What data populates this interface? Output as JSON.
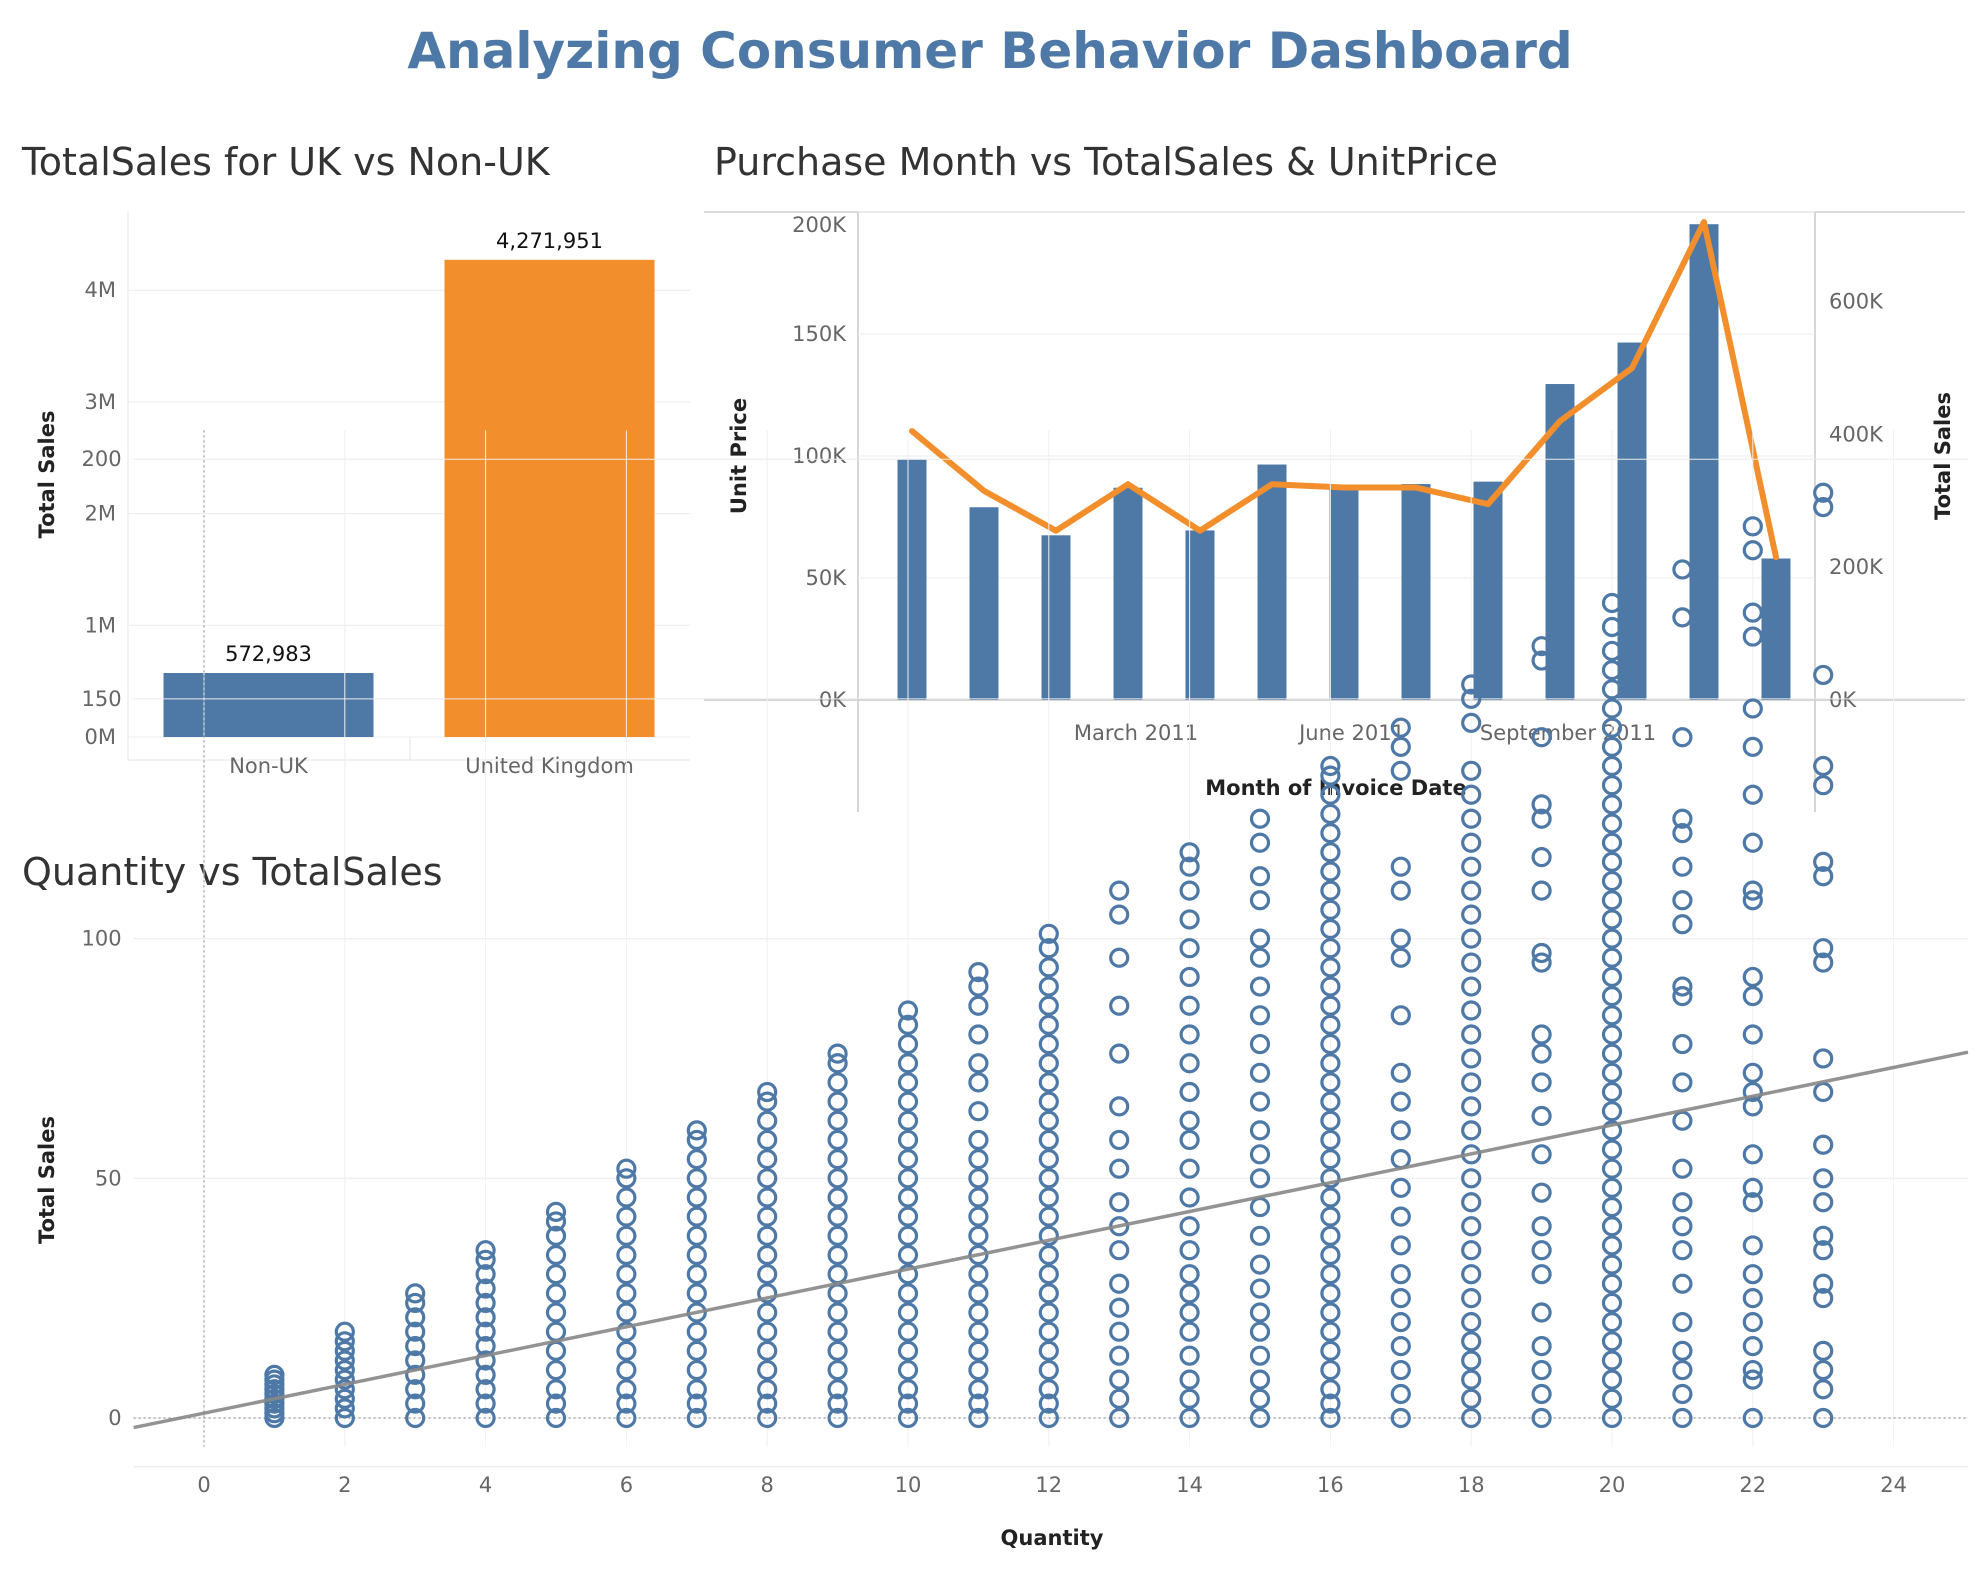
{
  "dashboard_title": "Analyzing Consumer Behavior Dashboard",
  "chart_data": [
    {
      "id": "uk_vs_nonuk",
      "type": "bar",
      "title": "TotalSales for UK vs Non-UK",
      "categories": [
        "Non-UK",
        "United Kingdom"
      ],
      "values": [
        572983,
        4271951
      ],
      "data_labels": [
        "572,983",
        "4,271,951"
      ],
      "colors": [
        "#4e79a7",
        "#f28e2b"
      ],
      "ylabel": "Total Sales",
      "xlabel": "",
      "ylim": [
        0,
        4700000
      ],
      "yticks": [
        0,
        1000000,
        2000000,
        3000000,
        4000000
      ],
      "ytick_labels": [
        "0M",
        "1M",
        "2M",
        "3M",
        "4M"
      ],
      "grid": true
    },
    {
      "id": "month_combo",
      "type": "bar",
      "title": "Purchase Month vs TotalSales & UnitPrice",
      "xlabel": "Month of Invoice Date",
      "x": [
        "2010-12",
        "2011-01",
        "2011-02",
        "2011-03",
        "2011-04",
        "2011-05",
        "2011-06",
        "2011-07",
        "2011-08",
        "2011-09",
        "2011-10",
        "2011-11",
        "2011-12"
      ],
      "xtick_labels": [
        {
          "month": "2011-03",
          "label": "March 2011"
        },
        {
          "month": "2011-06",
          "label": "June 2011"
        },
        {
          "month": "2011-09",
          "label": "September 2011"
        }
      ],
      "series": [
        {
          "kind": "bar",
          "axis": "left",
          "color": "#4e79a7",
          "values": [
            98500,
            79000,
            67500,
            87000,
            69500,
            96500,
            88000,
            88500,
            89500,
            129500,
            146500,
            195000,
            58000
          ]
        },
        {
          "kind": "line",
          "axis": "right",
          "color": "#f28e2b",
          "values": [
            405000,
            315000,
            255000,
            325000,
            255000,
            325000,
            320000,
            320000,
            295000,
            420000,
            500000,
            720000,
            215000
          ]
        }
      ],
      "left_axis": {
        "label": "Unit Price",
        "ylim": [
          0,
          200000
        ],
        "ticks": [
          0,
          50000,
          100000,
          150000,
          200000
        ],
        "tick_labels": [
          "0K",
          "50K",
          "100K",
          "150K",
          "200K"
        ]
      },
      "right_axis": {
        "label": "Total Sales",
        "ylim": [
          0,
          735000
        ],
        "ticks": [
          0,
          200000,
          400000,
          600000
        ],
        "tick_labels": [
          "0K",
          "200K",
          "400K",
          "600K"
        ]
      },
      "grid": true
    },
    {
      "id": "qty_scatter",
      "type": "scatter",
      "title": "Quantity vs TotalSales",
      "xlabel": "Quantity",
      "ylabel": "Total Sales",
      "xlim": [
        -1,
        25
      ],
      "ylim": [
        -6,
        206
      ],
      "xticks": [
        0,
        2,
        4,
        6,
        8,
        10,
        12,
        14,
        16,
        18,
        20,
        22,
        24
      ],
      "yticks": [
        0,
        50,
        100,
        150,
        200
      ],
      "marker_color": "#4e79a7",
      "trend_line": {
        "color": "#888888",
        "slope": 3.0,
        "intercept": 1.0
      },
      "grid": true,
      "points": [
        {
          "x": 1,
          "y": [
            0,
            1,
            2,
            3,
            4,
            5,
            6,
            7,
            8,
            9
          ]
        },
        {
          "x": 2,
          "y": [
            0,
            2,
            4,
            6,
            8,
            10,
            12,
            14,
            16,
            18
          ]
        },
        {
          "x": 3,
          "y": [
            0,
            3,
            6,
            9,
            12,
            15,
            18,
            21,
            24,
            26
          ]
        },
        {
          "x": 4,
          "y": [
            0,
            3,
            6,
            9,
            12,
            15,
            18,
            21,
            24,
            27,
            30,
            33,
            35
          ]
        },
        {
          "x": 5,
          "y": [
            0,
            3,
            6,
            10,
            14,
            18,
            22,
            26,
            30,
            34,
            38,
            41,
            43
          ]
        },
        {
          "x": 6,
          "y": [
            0,
            3,
            6,
            10,
            14,
            18,
            22,
            26,
            30,
            34,
            38,
            42,
            46,
            50,
            52
          ]
        },
        {
          "x": 7,
          "y": [
            0,
            3,
            6,
            10,
            14,
            18,
            22,
            26,
            30,
            34,
            38,
            42,
            46,
            50,
            54,
            58,
            60
          ]
        },
        {
          "x": 8,
          "y": [
            0,
            3,
            6,
            10,
            14,
            18,
            22,
            26,
            30,
            34,
            38,
            42,
            46,
            50,
            54,
            58,
            62,
            66,
            68
          ]
        },
        {
          "x": 9,
          "y": [
            0,
            3,
            6,
            10,
            14,
            18,
            22,
            26,
            30,
            34,
            38,
            42,
            46,
            50,
            54,
            58,
            62,
            66,
            70,
            74,
            76
          ]
        },
        {
          "x": 10,
          "y": [
            0,
            3,
            6,
            10,
            14,
            18,
            22,
            26,
            30,
            34,
            38,
            42,
            46,
            50,
            54,
            58,
            62,
            66,
            70,
            74,
            78,
            82,
            85
          ]
        },
        {
          "x": 11,
          "y": [
            0,
            3,
            6,
            10,
            14,
            18,
            22,
            26,
            30,
            34,
            38,
            42,
            46,
            50,
            54,
            58,
            64,
            70,
            74,
            80,
            86,
            90,
            93
          ]
        },
        {
          "x": 12,
          "y": [
            0,
            3,
            6,
            10,
            14,
            18,
            22,
            26,
            30,
            34,
            38,
            42,
            46,
            50,
            54,
            58,
            62,
            66,
            70,
            74,
            78,
            82,
            86,
            90,
            94,
            98,
            101
          ]
        },
        {
          "x": 13,
          "y": [
            0,
            4,
            8,
            13,
            18,
            23,
            28,
            35,
            40,
            45,
            52,
            58,
            65,
            76,
            86,
            96,
            105,
            110
          ]
        },
        {
          "x": 14,
          "y": [
            0,
            4,
            8,
            13,
            18,
            22,
            26,
            30,
            35,
            40,
            46,
            52,
            58,
            62,
            68,
            74,
            80,
            86,
            92,
            98,
            104,
            110,
            115,
            118
          ]
        },
        {
          "x": 15,
          "y": [
            0,
            4,
            8,
            13,
            18,
            22,
            27,
            32,
            38,
            44,
            50,
            55,
            60,
            66,
            72,
            78,
            84,
            90,
            96,
            100,
            108,
            113,
            120,
            125
          ]
        },
        {
          "x": 16,
          "y": [
            0,
            3,
            6,
            10,
            14,
            18,
            22,
            26,
            30,
            34,
            38,
            42,
            46,
            50,
            54,
            58,
            62,
            66,
            70,
            74,
            78,
            82,
            86,
            90,
            94,
            98,
            102,
            106,
            110,
            114,
            118,
            122,
            126,
            130,
            134,
            136
          ]
        },
        {
          "x": 17,
          "y": [
            0,
            5,
            10,
            15,
            20,
            25,
            30,
            36,
            42,
            48,
            54,
            60,
            66,
            72,
            84,
            96,
            100,
            110,
            115,
            135,
            140,
            144
          ]
        },
        {
          "x": 18,
          "y": [
            0,
            4,
            8,
            12,
            16,
            20,
            25,
            30,
            35,
            40,
            45,
            50,
            55,
            60,
            65,
            70,
            75,
            80,
            85,
            90,
            95,
            100,
            105,
            110,
            115,
            120,
            125,
            130,
            135,
            145,
            150,
            153
          ]
        },
        {
          "x": 19,
          "y": [
            0,
            5,
            10,
            15,
            22,
            30,
            35,
            40,
            47,
            55,
            63,
            70,
            76,
            80,
            95,
            97,
            110,
            117,
            125,
            128,
            142,
            158,
            161
          ]
        },
        {
          "x": 20,
          "y": [
            0,
            4,
            8,
            12,
            16,
            20,
            24,
            28,
            32,
            36,
            40,
            44,
            48,
            52,
            56,
            60,
            64,
            68,
            72,
            76,
            80,
            84,
            88,
            92,
            96,
            100,
            104,
            108,
            112,
            116,
            120,
            124,
            128,
            132,
            136,
            140,
            144,
            148,
            152,
            156,
            160,
            165,
            170
          ]
        },
        {
          "x": 21,
          "y": [
            0,
            5,
            10,
            14,
            20,
            28,
            35,
            40,
            45,
            52,
            62,
            70,
            78,
            88,
            90,
            103,
            108,
            115,
            122,
            125,
            142,
            167,
            177
          ]
        },
        {
          "x": 22,
          "y": [
            0,
            8,
            10,
            15,
            20,
            25,
            30,
            36,
            45,
            48,
            55,
            65,
            68,
            72,
            80,
            88,
            92,
            108,
            110,
            120,
            130,
            140,
            148,
            163,
            168,
            181,
            186
          ]
        },
        {
          "x": 23,
          "y": [
            0,
            6,
            10,
            14,
            25,
            28,
            35,
            38,
            45,
            50,
            57,
            68,
            75,
            95,
            98,
            113,
            116,
            132,
            136,
            155,
            190,
            193
          ]
        }
      ]
    }
  ]
}
